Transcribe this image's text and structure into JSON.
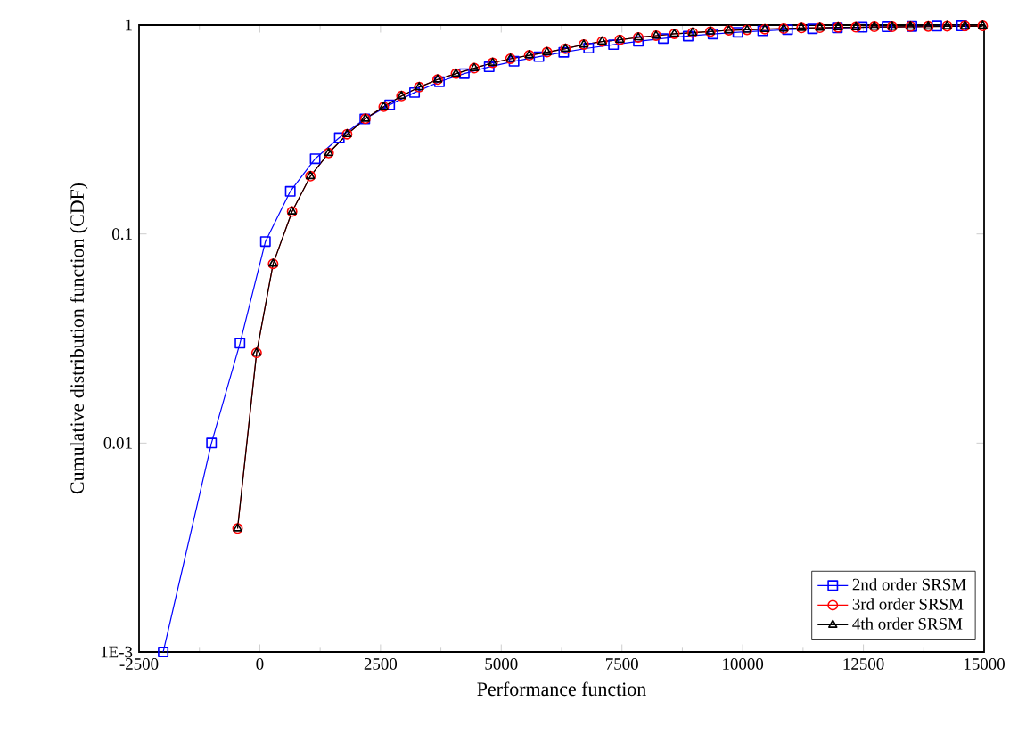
{
  "chart_data": {
    "type": "line",
    "xlabel": "Performance function",
    "ylabel": "Cumulative distribution function (CDF)",
    "log": "y",
    "xlim": [
      -2500,
      15000
    ],
    "ylim": [
      0.001,
      1
    ],
    "xticks": [
      -2500,
      0,
      2500,
      5000,
      7500,
      10000,
      12500,
      15000
    ],
    "yticks": [
      {
        "value": 0.001,
        "label": "1E-3"
      },
      0.01,
      0.1,
      1
    ],
    "legend": "bottom right",
    "grid": false,
    "series": [
      {
        "name": "2nd order SRSM",
        "color": "#0000ff",
        "marker": "square",
        "x": [
          -2000,
          -1000,
          -410,
          117,
          632,
          1147,
          1647,
          2175,
          2690,
          3205,
          3720,
          4235,
          4750,
          5265,
          5780,
          6295,
          6810,
          7325,
          7840,
          8355,
          8870,
          9385,
          9900,
          10415,
          10930,
          11445,
          11960,
          12475,
          12990,
          13505,
          14020,
          14535
        ],
        "values": [
          0.001,
          0.01,
          0.03,
          0.092,
          0.16,
          0.229,
          0.289,
          0.355,
          0.415,
          0.475,
          0.535,
          0.585,
          0.63,
          0.67,
          0.705,
          0.74,
          0.775,
          0.805,
          0.835,
          0.862,
          0.885,
          0.905,
          0.923,
          0.938,
          0.95,
          0.96,
          0.968,
          0.975,
          0.98,
          0.984,
          0.987,
          0.99
        ]
      },
      {
        "name": "3rd order SRSM",
        "color": "#ff0000",
        "marker": "circle",
        "x": [
          -460,
          -66,
          276,
          669,
          1048,
          1426,
          1808,
          2187,
          2566,
          2934,
          3301,
          3683,
          4062,
          4441,
          4823,
          5191,
          5580,
          5948,
          6330,
          6709,
          7088,
          7456,
          7838,
          8206,
          8585,
          8963,
          9331,
          9712,
          10091,
          10459,
          10851,
          11219,
          11598,
          11977,
          12345,
          12727,
          13095,
          13474,
          13842,
          14234,
          14602,
          14970
        ],
        "values": [
          0.0039,
          0.027,
          0.072,
          0.128,
          0.189,
          0.244,
          0.3,
          0.356,
          0.406,
          0.457,
          0.504,
          0.548,
          0.585,
          0.621,
          0.659,
          0.689,
          0.716,
          0.741,
          0.77,
          0.806,
          0.833,
          0.849,
          0.872,
          0.889,
          0.907,
          0.919,
          0.93,
          0.943,
          0.948,
          0.955,
          0.961,
          0.968,
          0.97,
          0.974,
          0.975,
          0.98,
          0.98,
          0.982,
          0.983,
          0.986,
          0.987,
          0.99
        ]
      },
      {
        "name": "4th order SRSM",
        "color": "#000000",
        "marker": "triangle",
        "x": [
          -460,
          -66,
          276,
          669,
          1048,
          1426,
          1808,
          2187,
          2566,
          2934,
          3301,
          3683,
          4062,
          4441,
          4823,
          5191,
          5580,
          5948,
          6330,
          6709,
          7088,
          7456,
          7838,
          8206,
          8585,
          8963,
          9331,
          9712,
          10091,
          10459,
          10851,
          11219,
          11598,
          11977,
          12345,
          12727,
          13095,
          13474,
          13842,
          14234,
          14602,
          14970
        ],
        "values": [
          0.0039,
          0.027,
          0.072,
          0.128,
          0.189,
          0.244,
          0.3,
          0.356,
          0.406,
          0.457,
          0.504,
          0.548,
          0.585,
          0.621,
          0.659,
          0.689,
          0.716,
          0.741,
          0.77,
          0.806,
          0.833,
          0.849,
          0.872,
          0.889,
          0.907,
          0.919,
          0.93,
          0.943,
          0.948,
          0.955,
          0.961,
          0.968,
          0.97,
          0.974,
          0.975,
          0.98,
          0.98,
          0.982,
          0.983,
          0.986,
          0.987,
          0.99
        ]
      }
    ]
  }
}
